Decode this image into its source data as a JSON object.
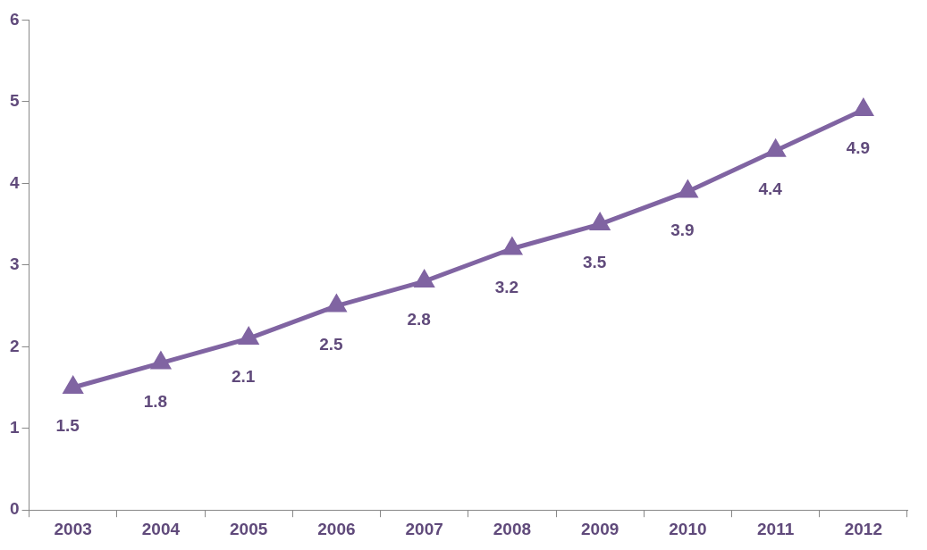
{
  "chart_data": {
    "type": "line",
    "categories": [
      "2003",
      "2004",
      "2005",
      "2006",
      "2007",
      "2008",
      "2009",
      "2010",
      "2011",
      "2012"
    ],
    "values": [
      1.5,
      1.8,
      2.1,
      2.5,
      2.8,
      3.2,
      3.5,
      3.9,
      4.4,
      4.9
    ],
    "color": "#8064a2",
    "ylim": [
      0,
      6
    ],
    "yticks": [
      0,
      1,
      2,
      3,
      4,
      5,
      6
    ],
    "grid": false,
    "legend": false,
    "marker": "triangle",
    "line_style": "solid",
    "data_labels": true
  }
}
